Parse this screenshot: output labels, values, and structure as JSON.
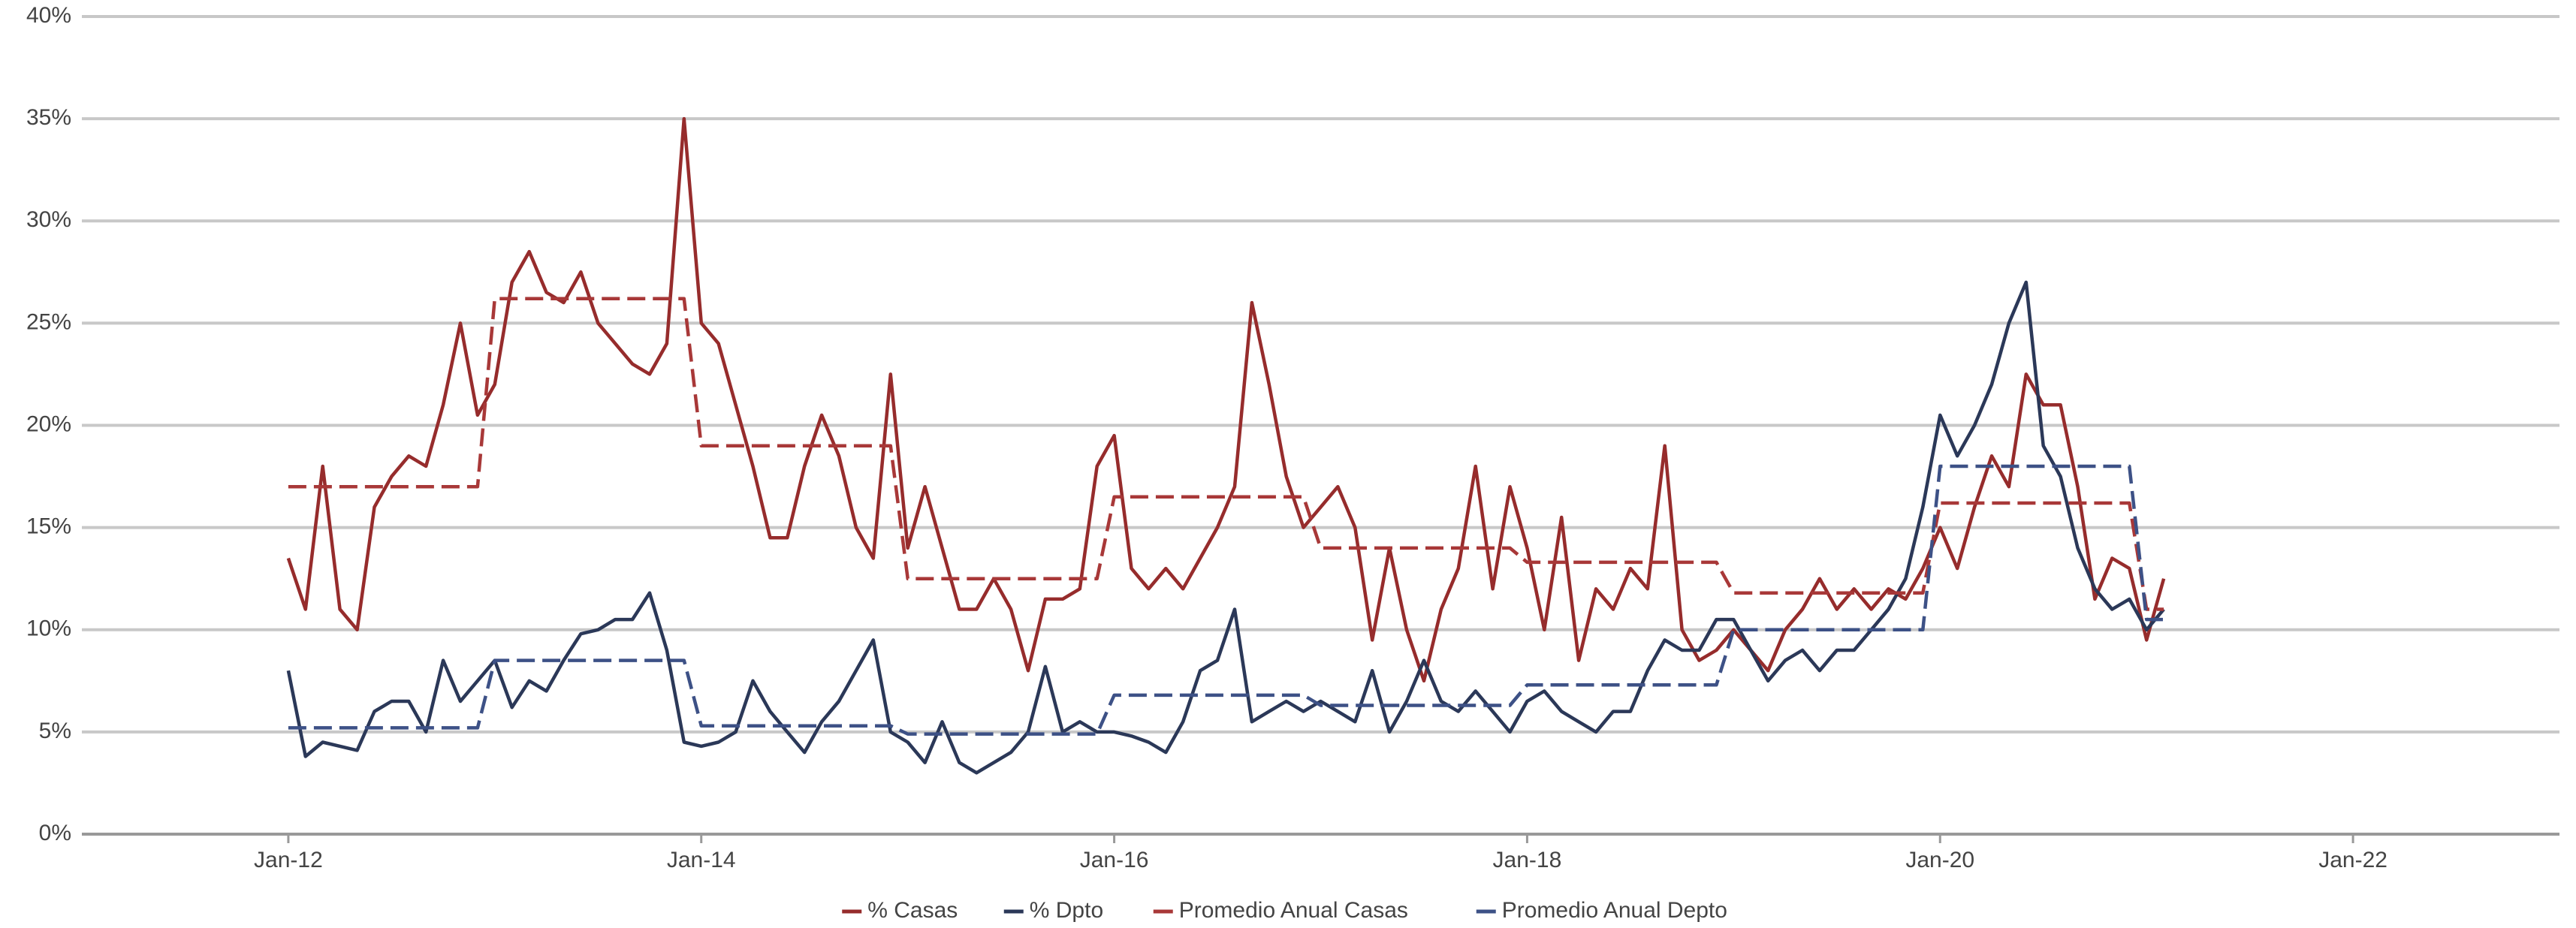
{
  "chart_data": {
    "type": "line",
    "x": [
      "2012-01",
      "2012-02",
      "2012-03",
      "2012-04",
      "2012-05",
      "2012-06",
      "2012-07",
      "2012-08",
      "2012-09",
      "2012-10",
      "2012-11",
      "2012-12",
      "2013-01",
      "2013-02",
      "2013-03",
      "2013-04",
      "2013-05",
      "2013-06",
      "2013-07",
      "2013-08",
      "2013-09",
      "2013-10",
      "2013-11",
      "2013-12",
      "2014-01",
      "2014-02",
      "2014-03",
      "2014-04",
      "2014-05",
      "2014-06",
      "2014-07",
      "2014-08",
      "2014-09",
      "2014-10",
      "2014-11",
      "2014-12",
      "2015-01",
      "2015-02",
      "2015-03",
      "2015-04",
      "2015-05",
      "2015-06",
      "2015-07",
      "2015-08",
      "2015-09",
      "2015-10",
      "2015-11",
      "2015-12",
      "2016-01",
      "2016-02",
      "2016-03",
      "2016-04",
      "2016-05",
      "2016-06",
      "2016-07",
      "2016-08",
      "2016-09",
      "2016-10",
      "2016-11",
      "2016-12",
      "2017-01",
      "2017-02",
      "2017-03",
      "2017-04",
      "2017-05",
      "2017-06",
      "2017-07",
      "2017-08",
      "2017-09",
      "2017-10",
      "2017-11",
      "2017-12",
      "2018-01",
      "2018-02",
      "2018-03",
      "2018-04",
      "2018-05",
      "2018-06",
      "2018-07",
      "2018-08",
      "2018-09",
      "2018-10",
      "2018-11",
      "2018-12",
      "2019-01",
      "2019-02",
      "2019-03",
      "2019-04",
      "2019-05",
      "2019-06",
      "2019-07",
      "2019-08",
      "2019-09",
      "2019-10",
      "2019-11",
      "2019-12",
      "2020-01",
      "2020-02",
      "2020-03",
      "2020-04",
      "2020-05",
      "2020-06",
      "2020-07",
      "2020-08",
      "2020-09",
      "2020-10",
      "2020-11",
      "2020-12",
      "2021-01",
      "2021-02"
    ],
    "series": [
      {
        "name": "% Casas",
        "color": "#962c2c",
        "dashed": false,
        "values": [
          13.5,
          11,
          18,
          11,
          10,
          16,
          17.5,
          18.5,
          18,
          21,
          25,
          20.5,
          22,
          27,
          28.5,
          26.5,
          26,
          27.5,
          25,
          24,
          23,
          22.5,
          24,
          35,
          25,
          24,
          21,
          18,
          14.5,
          14.5,
          18,
          20.5,
          18.5,
          15,
          13.5,
          22.5,
          14,
          17,
          14,
          11,
          11,
          12.5,
          11,
          8,
          11.5,
          11.5,
          12,
          18,
          19.5,
          13,
          12,
          13,
          12,
          13.5,
          15,
          17,
          26,
          22,
          17.5,
          15,
          16,
          17,
          15,
          9.5,
          14,
          10,
          7.5,
          11,
          13,
          18,
          12,
          17,
          14,
          10,
          15.5,
          8.5,
          12,
          11,
          13,
          12,
          19,
          10,
          8.5,
          9,
          10,
          9,
          8,
          10,
          11,
          12.5,
          11,
          12,
          11,
          12,
          11.5,
          13,
          15,
          13,
          16,
          18.5,
          17,
          22.5,
          21,
          21,
          17,
          11.5,
          13.5,
          13,
          9.5,
          12.5
        ]
      },
      {
        "name": "% Dpto",
        "color": "#2b3858",
        "dashed": false,
        "values": [
          8,
          3.8,
          4.5,
          4.3,
          4.1,
          6,
          6.5,
          6.5,
          5,
          8.5,
          6.5,
          7.5,
          8.5,
          6.2,
          7.5,
          7,
          8.5,
          9.8,
          10,
          10.5,
          10.5,
          11.8,
          9,
          4.5,
          4.3,
          4.5,
          5,
          7.5,
          6,
          5,
          4,
          5.5,
          6.5,
          8,
          9.5,
          5,
          4.5,
          3.5,
          5.5,
          3.5,
          3,
          3.5,
          4,
          5,
          8.2,
          5,
          5.5,
          5,
          5,
          4.8,
          4.5,
          4,
          5.5,
          8,
          8.5,
          11,
          5.5,
          6,
          6.5,
          6,
          6.5,
          6,
          5.5,
          8,
          5,
          6.5,
          8.5,
          6.5,
          6,
          7,
          6,
          5,
          6.5,
          7,
          6,
          5.5,
          5,
          6,
          6,
          8,
          9.5,
          9,
          9,
          10.5,
          10.5,
          9,
          7.5,
          8.5,
          9,
          8,
          9,
          9,
          10,
          11,
          12.5,
          16,
          20.5,
          18.5,
          20,
          22,
          25,
          27,
          19,
          17.5,
          14,
          12,
          11,
          11.5,
          10,
          11
        ]
      },
      {
        "name": "Promedio Anual Casas",
        "color": "#a83838",
        "dashed": true,
        "values": [
          17,
          17,
          17,
          17,
          17,
          17,
          17,
          17,
          17,
          17,
          17,
          17,
          26.2,
          26.2,
          26.2,
          26.2,
          26.2,
          26.2,
          26.2,
          26.2,
          26.2,
          26.2,
          26.2,
          26.2,
          19,
          19,
          19,
          19,
          19,
          19,
          19,
          19,
          19,
          19,
          19,
          19,
          12.5,
          12.5,
          12.5,
          12.5,
          12.5,
          12.5,
          12.5,
          12.5,
          12.5,
          12.5,
          12.5,
          12.5,
          16.5,
          16.5,
          16.5,
          16.5,
          16.5,
          16.5,
          16.5,
          16.5,
          16.5,
          16.5,
          16.5,
          16.5,
          14,
          14,
          14,
          14,
          14,
          14,
          14,
          14,
          14,
          14,
          14,
          14,
          13.3,
          13.3,
          13.3,
          13.3,
          13.3,
          13.3,
          13.3,
          13.3,
          13.3,
          13.3,
          13.3,
          13.3,
          11.8,
          11.8,
          11.8,
          11.8,
          11.8,
          11.8,
          11.8,
          11.8,
          11.8,
          11.8,
          11.8,
          11.8,
          16.2,
          16.2,
          16.2,
          16.2,
          16.2,
          16.2,
          16.2,
          16.2,
          16.2,
          16.2,
          16.2,
          16.2,
          11,
          11
        ]
      },
      {
        "name": "Promedio Anual Depto",
        "color": "#3d5186",
        "dashed": true,
        "values": [
          5.2,
          5.2,
          5.2,
          5.2,
          5.2,
          5.2,
          5.2,
          5.2,
          5.2,
          5.2,
          5.2,
          5.2,
          8.5,
          8.5,
          8.5,
          8.5,
          8.5,
          8.5,
          8.5,
          8.5,
          8.5,
          8.5,
          8.5,
          8.5,
          5.3,
          5.3,
          5.3,
          5.3,
          5.3,
          5.3,
          5.3,
          5.3,
          5.3,
          5.3,
          5.3,
          5.3,
          4.9,
          4.9,
          4.9,
          4.9,
          4.9,
          4.9,
          4.9,
          4.9,
          4.9,
          4.9,
          4.9,
          4.9,
          6.8,
          6.8,
          6.8,
          6.8,
          6.8,
          6.8,
          6.8,
          6.8,
          6.8,
          6.8,
          6.8,
          6.8,
          6.3,
          6.3,
          6.3,
          6.3,
          6.3,
          6.3,
          6.3,
          6.3,
          6.3,
          6.3,
          6.3,
          6.3,
          7.3,
          7.3,
          7.3,
          7.3,
          7.3,
          7.3,
          7.3,
          7.3,
          7.3,
          7.3,
          7.3,
          7.3,
          10,
          10,
          10,
          10,
          10,
          10,
          10,
          10,
          10,
          10,
          10,
          10,
          18,
          18,
          18,
          18,
          18,
          18,
          18,
          18,
          18,
          18,
          18,
          18,
          10.5,
          10.5
        ]
      }
    ],
    "xlim": [
      "2011-01",
      "2023-01"
    ],
    "xticks": [
      {
        "value": "2012-01",
        "label": "Jan-12"
      },
      {
        "value": "2014-01",
        "label": "Jan-14"
      },
      {
        "value": "2016-01",
        "label": "Jan-16"
      },
      {
        "value": "2018-01",
        "label": "Jan-18"
      },
      {
        "value": "2020-01",
        "label": "Jan-20"
      },
      {
        "value": "2022-01",
        "label": "Jan-22"
      }
    ],
    "ylim": [
      0,
      40
    ],
    "yticks": [
      {
        "value": 0,
        "label": "0%"
      },
      {
        "value": 5,
        "label": "5%"
      },
      {
        "value": 10,
        "label": "10%"
      },
      {
        "value": 15,
        "label": "15%"
      },
      {
        "value": 20,
        "label": "20%"
      },
      {
        "value": 25,
        "label": "25%"
      },
      {
        "value": 30,
        "label": "30%"
      },
      {
        "value": 35,
        "label": "35%"
      },
      {
        "value": 40,
        "label": "40%"
      }
    ],
    "grid": true,
    "legend": "bottom"
  }
}
